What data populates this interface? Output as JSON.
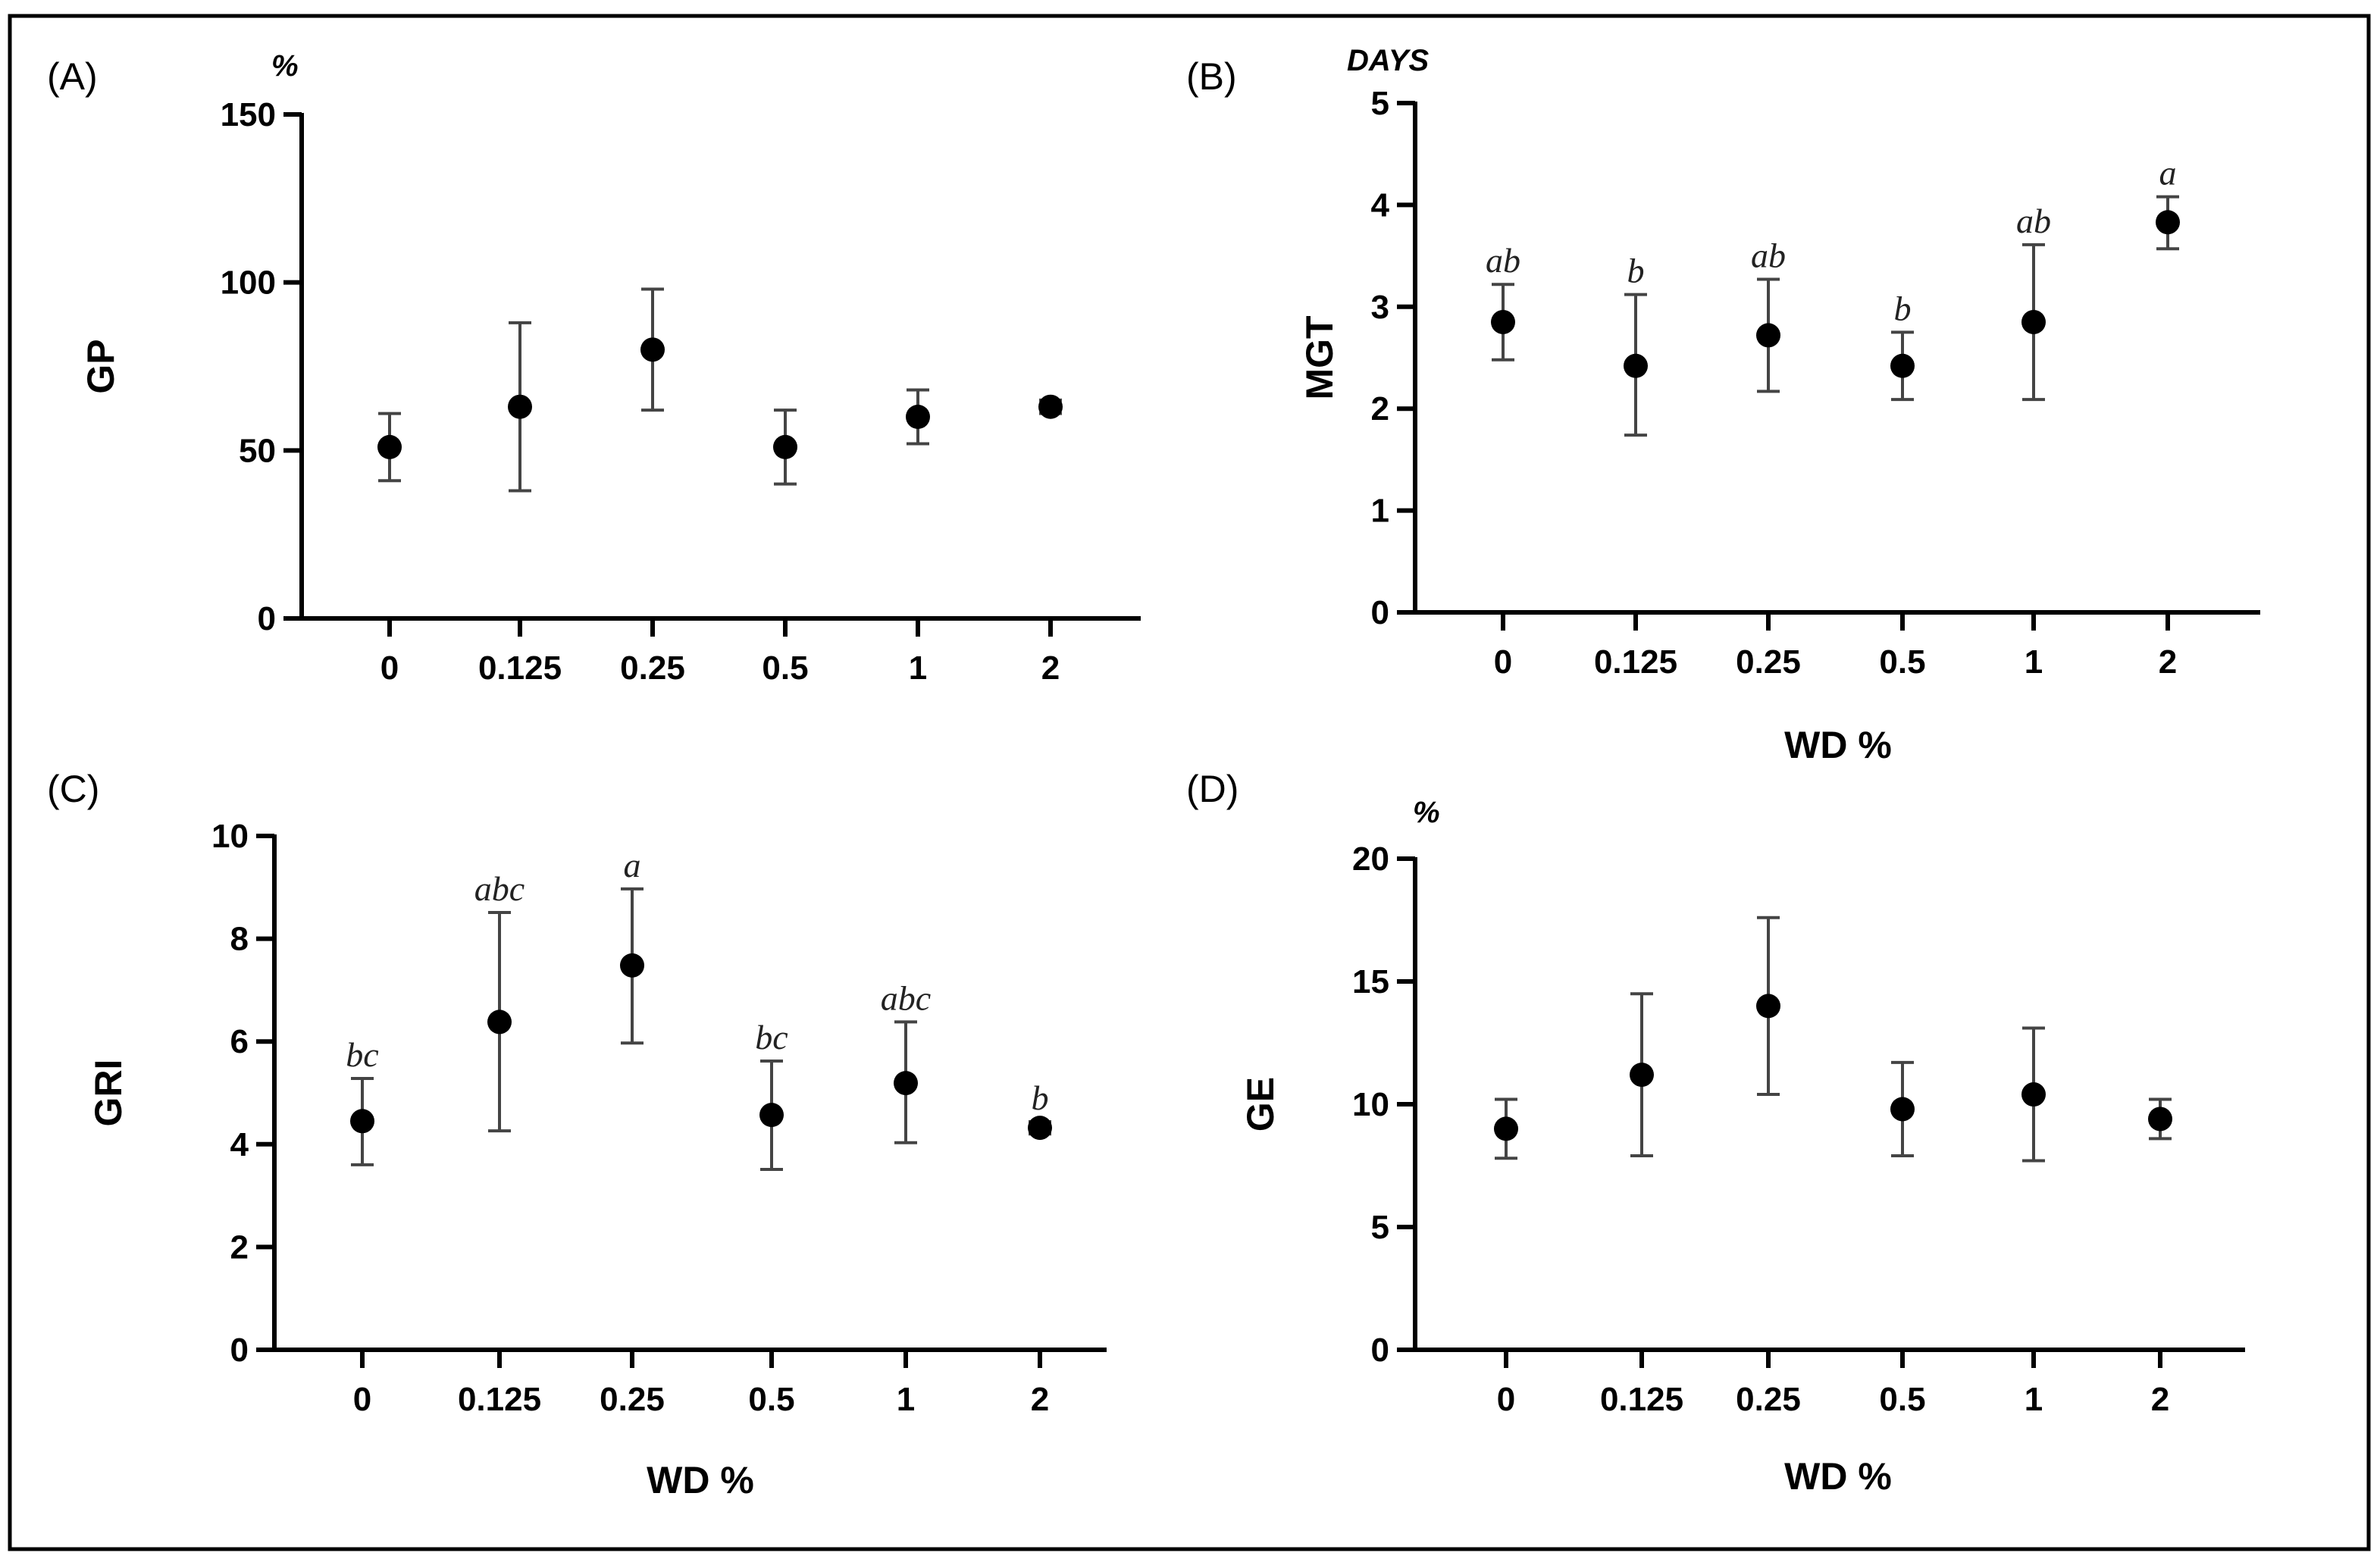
{
  "chart_data": [
    {
      "type": "scatter",
      "panel": "(A)",
      "unit": "%",
      "title": "",
      "xlabel": "",
      "ylabel": "GP",
      "categories": [
        "0",
        "0.125",
        "0.25",
        "0.5",
        "1",
        "2"
      ],
      "ylim": [
        0,
        150
      ],
      "yticks": [
        0,
        50,
        100,
        150
      ],
      "series": [
        {
          "name": "GP",
          "values": [
            51,
            63,
            80,
            51,
            60,
            63
          ],
          "err_low": [
            41,
            38,
            62,
            40,
            52,
            61
          ],
          "err_high": [
            61,
            88,
            98,
            62,
            68,
            65
          ]
        }
      ],
      "annotations": [
        "",
        "",
        "",
        "",
        "",
        ""
      ]
    },
    {
      "type": "scatter",
      "panel": "(B)",
      "unit": "DAYS",
      "title": "",
      "xlabel": "WD %",
      "ylabel": "MGT",
      "categories": [
        "0",
        "0.125",
        "0.25",
        "0.5",
        "1",
        "2"
      ],
      "ylim": [
        0,
        5
      ],
      "yticks": [
        0,
        1,
        2,
        3,
        4,
        5
      ],
      "series": [
        {
          "name": "MGT",
          "values": [
            2.85,
            2.42,
            2.72,
            2.42,
            2.85,
            3.83
          ],
          "err_low": [
            2.48,
            1.74,
            2.17,
            2.09,
            2.09,
            3.57
          ],
          "err_high": [
            3.22,
            3.12,
            3.27,
            2.75,
            3.61,
            4.08
          ]
        }
      ],
      "annotations": [
        "ab",
        "b",
        "ab",
        "b",
        "ab",
        "a"
      ]
    },
    {
      "type": "scatter",
      "panel": "(C)",
      "unit": "",
      "title": "",
      "xlabel": "WD %",
      "ylabel": "GRI",
      "categories": [
        "0",
        "0.125",
        "0.25",
        "0.5",
        "1",
        "2"
      ],
      "ylim": [
        0,
        10
      ],
      "yticks": [
        0,
        2,
        4,
        6,
        8,
        10
      ],
      "series": [
        {
          "name": "GRI",
          "values": [
            4.45,
            6.38,
            7.48,
            4.57,
            5.19,
            4.32
          ],
          "err_low": [
            3.6,
            4.26,
            5.97,
            3.51,
            4.03,
            4.2
          ],
          "err_high": [
            5.28,
            8.51,
            8.97,
            5.62,
            6.38,
            4.44
          ]
        }
      ],
      "annotations": [
        "bc",
        "abc",
        "a",
        "bc",
        "abc",
        "b"
      ]
    },
    {
      "type": "scatter",
      "panel": "(D)",
      "unit": "%",
      "title": "",
      "xlabel": "WD %",
      "ylabel": "GE",
      "categories": [
        "0",
        "0.125",
        "0.25",
        "0.5",
        "1",
        "2"
      ],
      "ylim": [
        0,
        20
      ],
      "yticks": [
        0,
        5,
        10,
        15,
        20
      ],
      "series": [
        {
          "name": "GE",
          "values": [
            9.0,
            11.2,
            14.0,
            9.8,
            10.4,
            9.4
          ],
          "err_low": [
            7.8,
            7.9,
            10.4,
            7.9,
            7.7,
            8.6
          ],
          "err_high": [
            10.2,
            14.5,
            17.6,
            11.7,
            13.1,
            10.2
          ]
        }
      ],
      "annotations": [
        "",
        "",
        "",
        "",
        "",
        ""
      ]
    }
  ]
}
